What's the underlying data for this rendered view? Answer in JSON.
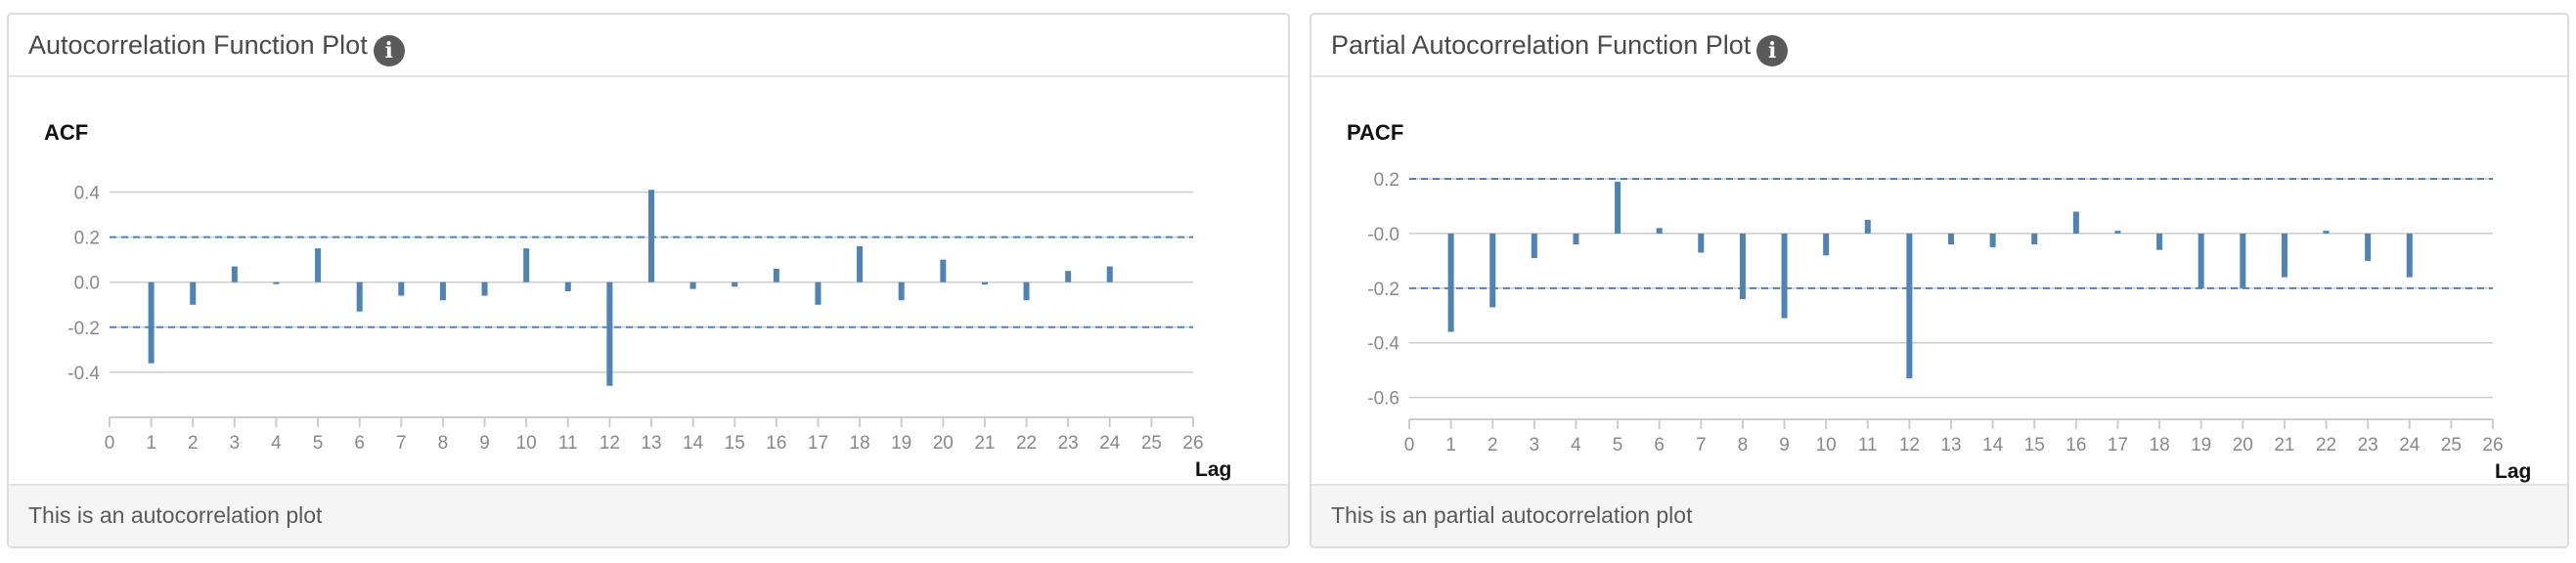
{
  "panels": [
    {
      "title": "Autocorrelation Function Plot",
      "info_icon": "info-icon",
      "footer": "This is an autocorrelation plot"
    },
    {
      "title": "Partial Autocorrelation Function Plot",
      "info_icon": "info-icon",
      "footer": "This is an partial autocorrelation plot"
    }
  ],
  "colors": {
    "bar": "#4f82b5",
    "confidence_line": "#4f82b5",
    "grid": "#cccccc"
  },
  "chart_data": [
    {
      "type": "bar",
      "title": "ACF",
      "xlabel": "Lag",
      "ylabel": "",
      "xlim": [
        0,
        26
      ],
      "ylim": [
        -0.6,
        0.45
      ],
      "x_ticks": [
        0,
        1,
        2,
        3,
        4,
        5,
        6,
        7,
        8,
        9,
        10,
        11,
        12,
        13,
        14,
        15,
        16,
        17,
        18,
        19,
        20,
        21,
        22,
        23,
        24,
        25,
        26
      ],
      "y_ticks": [
        -0.4,
        -0.2,
        0.0,
        0.2,
        0.4
      ],
      "y_tick_labels": [
        "-0.4",
        "-0.2",
        "0.0",
        "0.2",
        "0.4"
      ],
      "confidence_bounds": [
        0.2,
        -0.2
      ],
      "grid": true,
      "x": [
        1,
        2,
        3,
        4,
        5,
        6,
        7,
        8,
        9,
        10,
        11,
        12,
        13,
        14,
        15,
        16,
        17,
        18,
        19,
        20,
        21,
        22,
        23,
        24
      ],
      "values": [
        -0.36,
        -0.1,
        0.07,
        0.0,
        0.15,
        -0.13,
        -0.06,
        -0.08,
        -0.06,
        0.15,
        -0.04,
        -0.46,
        0.41,
        -0.03,
        -0.02,
        0.06,
        -0.1,
        0.16,
        -0.08,
        0.1,
        -0.01,
        -0.08,
        0.05,
        0.07
      ]
    },
    {
      "type": "bar",
      "title": "PACF",
      "xlabel": "Lag",
      "ylabel": "",
      "xlim": [
        0,
        26
      ],
      "ylim": [
        -0.68,
        0.2
      ],
      "x_ticks": [
        0,
        1,
        2,
        3,
        4,
        5,
        6,
        7,
        8,
        9,
        10,
        11,
        12,
        13,
        14,
        15,
        16,
        17,
        18,
        19,
        20,
        21,
        22,
        23,
        24,
        25,
        26
      ],
      "y_ticks": [
        -0.6,
        -0.4,
        -0.2,
        0.0,
        0.2
      ],
      "y_tick_labels": [
        "-0.6",
        "-0.4",
        "-0.2",
        "-0.0",
        "0.2"
      ],
      "confidence_bounds": [
        0.2,
        -0.2
      ],
      "grid": true,
      "x": [
        1,
        2,
        3,
        4,
        5,
        6,
        7,
        8,
        9,
        10,
        11,
        12,
        13,
        14,
        15,
        16,
        17,
        18,
        19,
        20,
        21,
        22,
        23,
        24
      ],
      "values": [
        -0.36,
        -0.27,
        -0.09,
        -0.04,
        0.19,
        0.02,
        -0.07,
        -0.24,
        -0.31,
        -0.08,
        0.05,
        -0.53,
        -0.04,
        -0.05,
        -0.04,
        0.08,
        0.01,
        -0.06,
        -0.2,
        -0.2,
        -0.16,
        0.01,
        -0.1,
        -0.16
      ]
    }
  ]
}
